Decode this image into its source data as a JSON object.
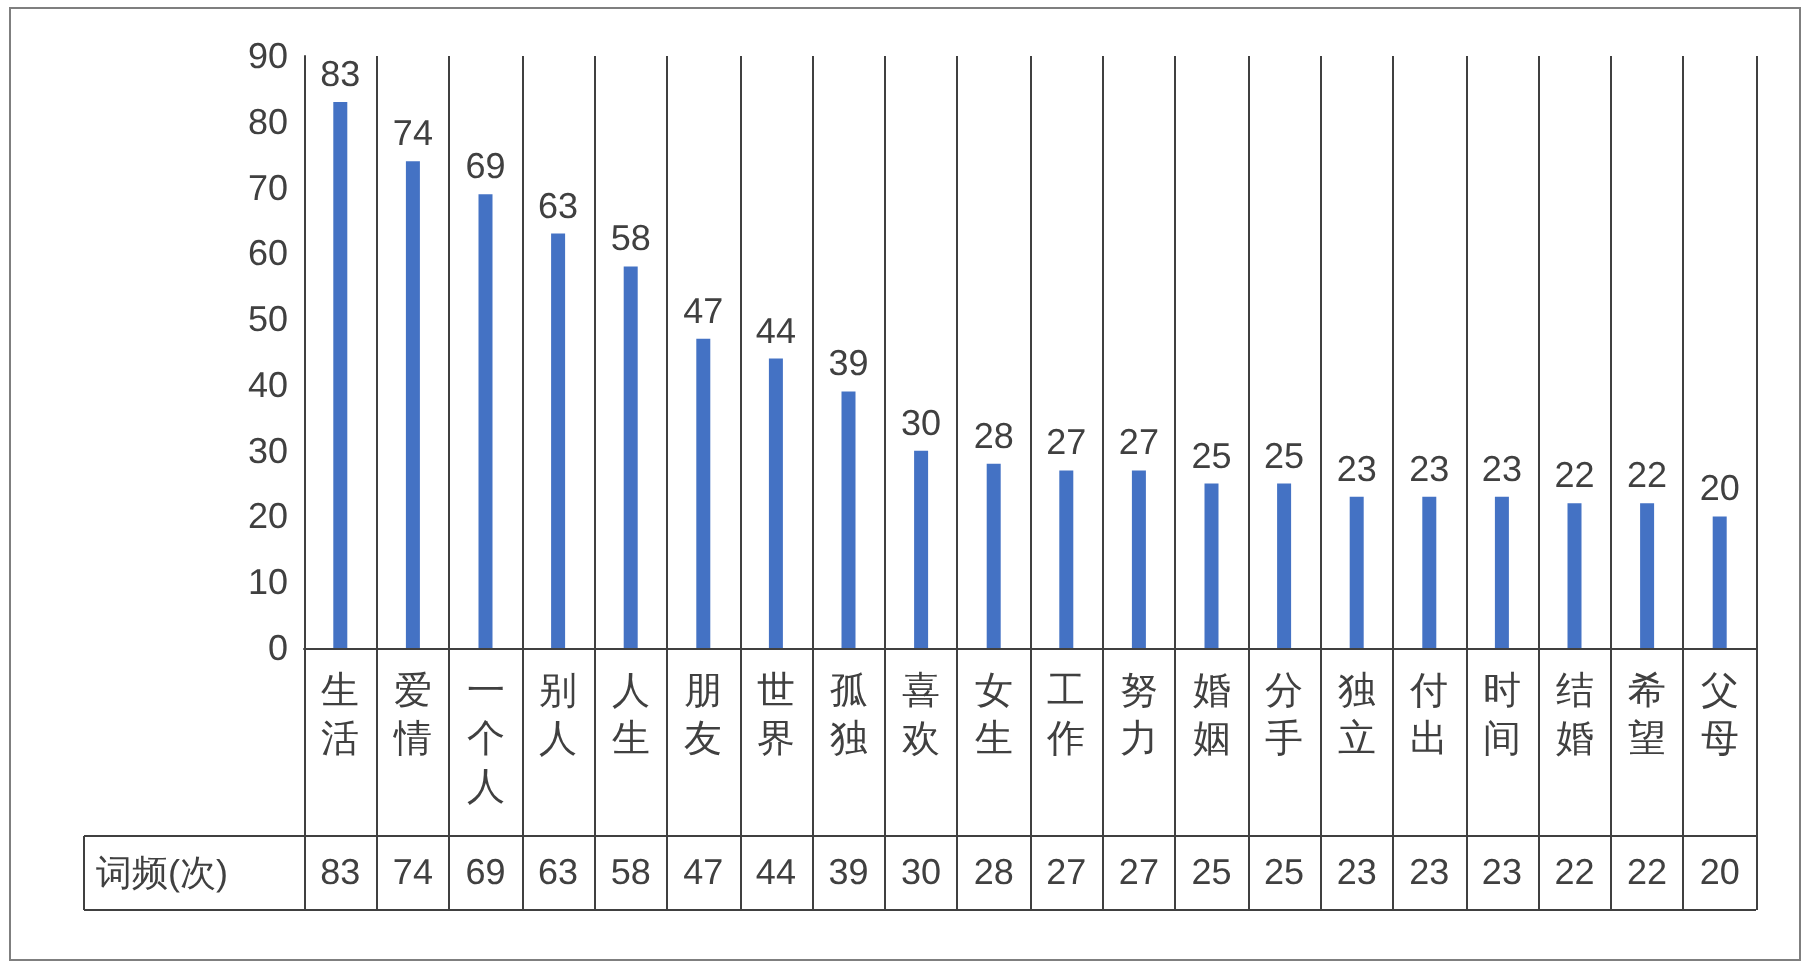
{
  "chart_data": {
    "type": "bar",
    "categories": [
      "生活",
      "爱情",
      "一个人",
      "别人",
      "人生",
      "朋友",
      "世界",
      "孤独",
      "喜欢",
      "女生",
      "工作",
      "努力",
      "婚姻",
      "分手",
      "独立",
      "付出",
      "时间",
      "结婚",
      "希望",
      "父母"
    ],
    "series": [
      {
        "name": "词频(次)",
        "color": "#4472c4",
        "values": [
          83,
          74,
          69,
          63,
          58,
          47,
          44,
          39,
          30,
          28,
          27,
          27,
          25,
          25,
          23,
          23,
          23,
          22,
          22,
          20
        ],
        "value_labels": [
          "83",
          "74",
          "69",
          "63",
          "58",
          "47",
          "44",
          "39",
          "30",
          "28",
          "27",
          "27",
          "25",
          "25",
          "23",
          "23",
          "23",
          "22",
          "22",
          "20"
        ]
      }
    ],
    "ylim": [
      0,
      90
    ],
    "yticks": [
      0,
      10,
      20,
      30,
      40,
      50,
      60,
      70,
      80,
      90
    ],
    "data_labels": true
  }
}
